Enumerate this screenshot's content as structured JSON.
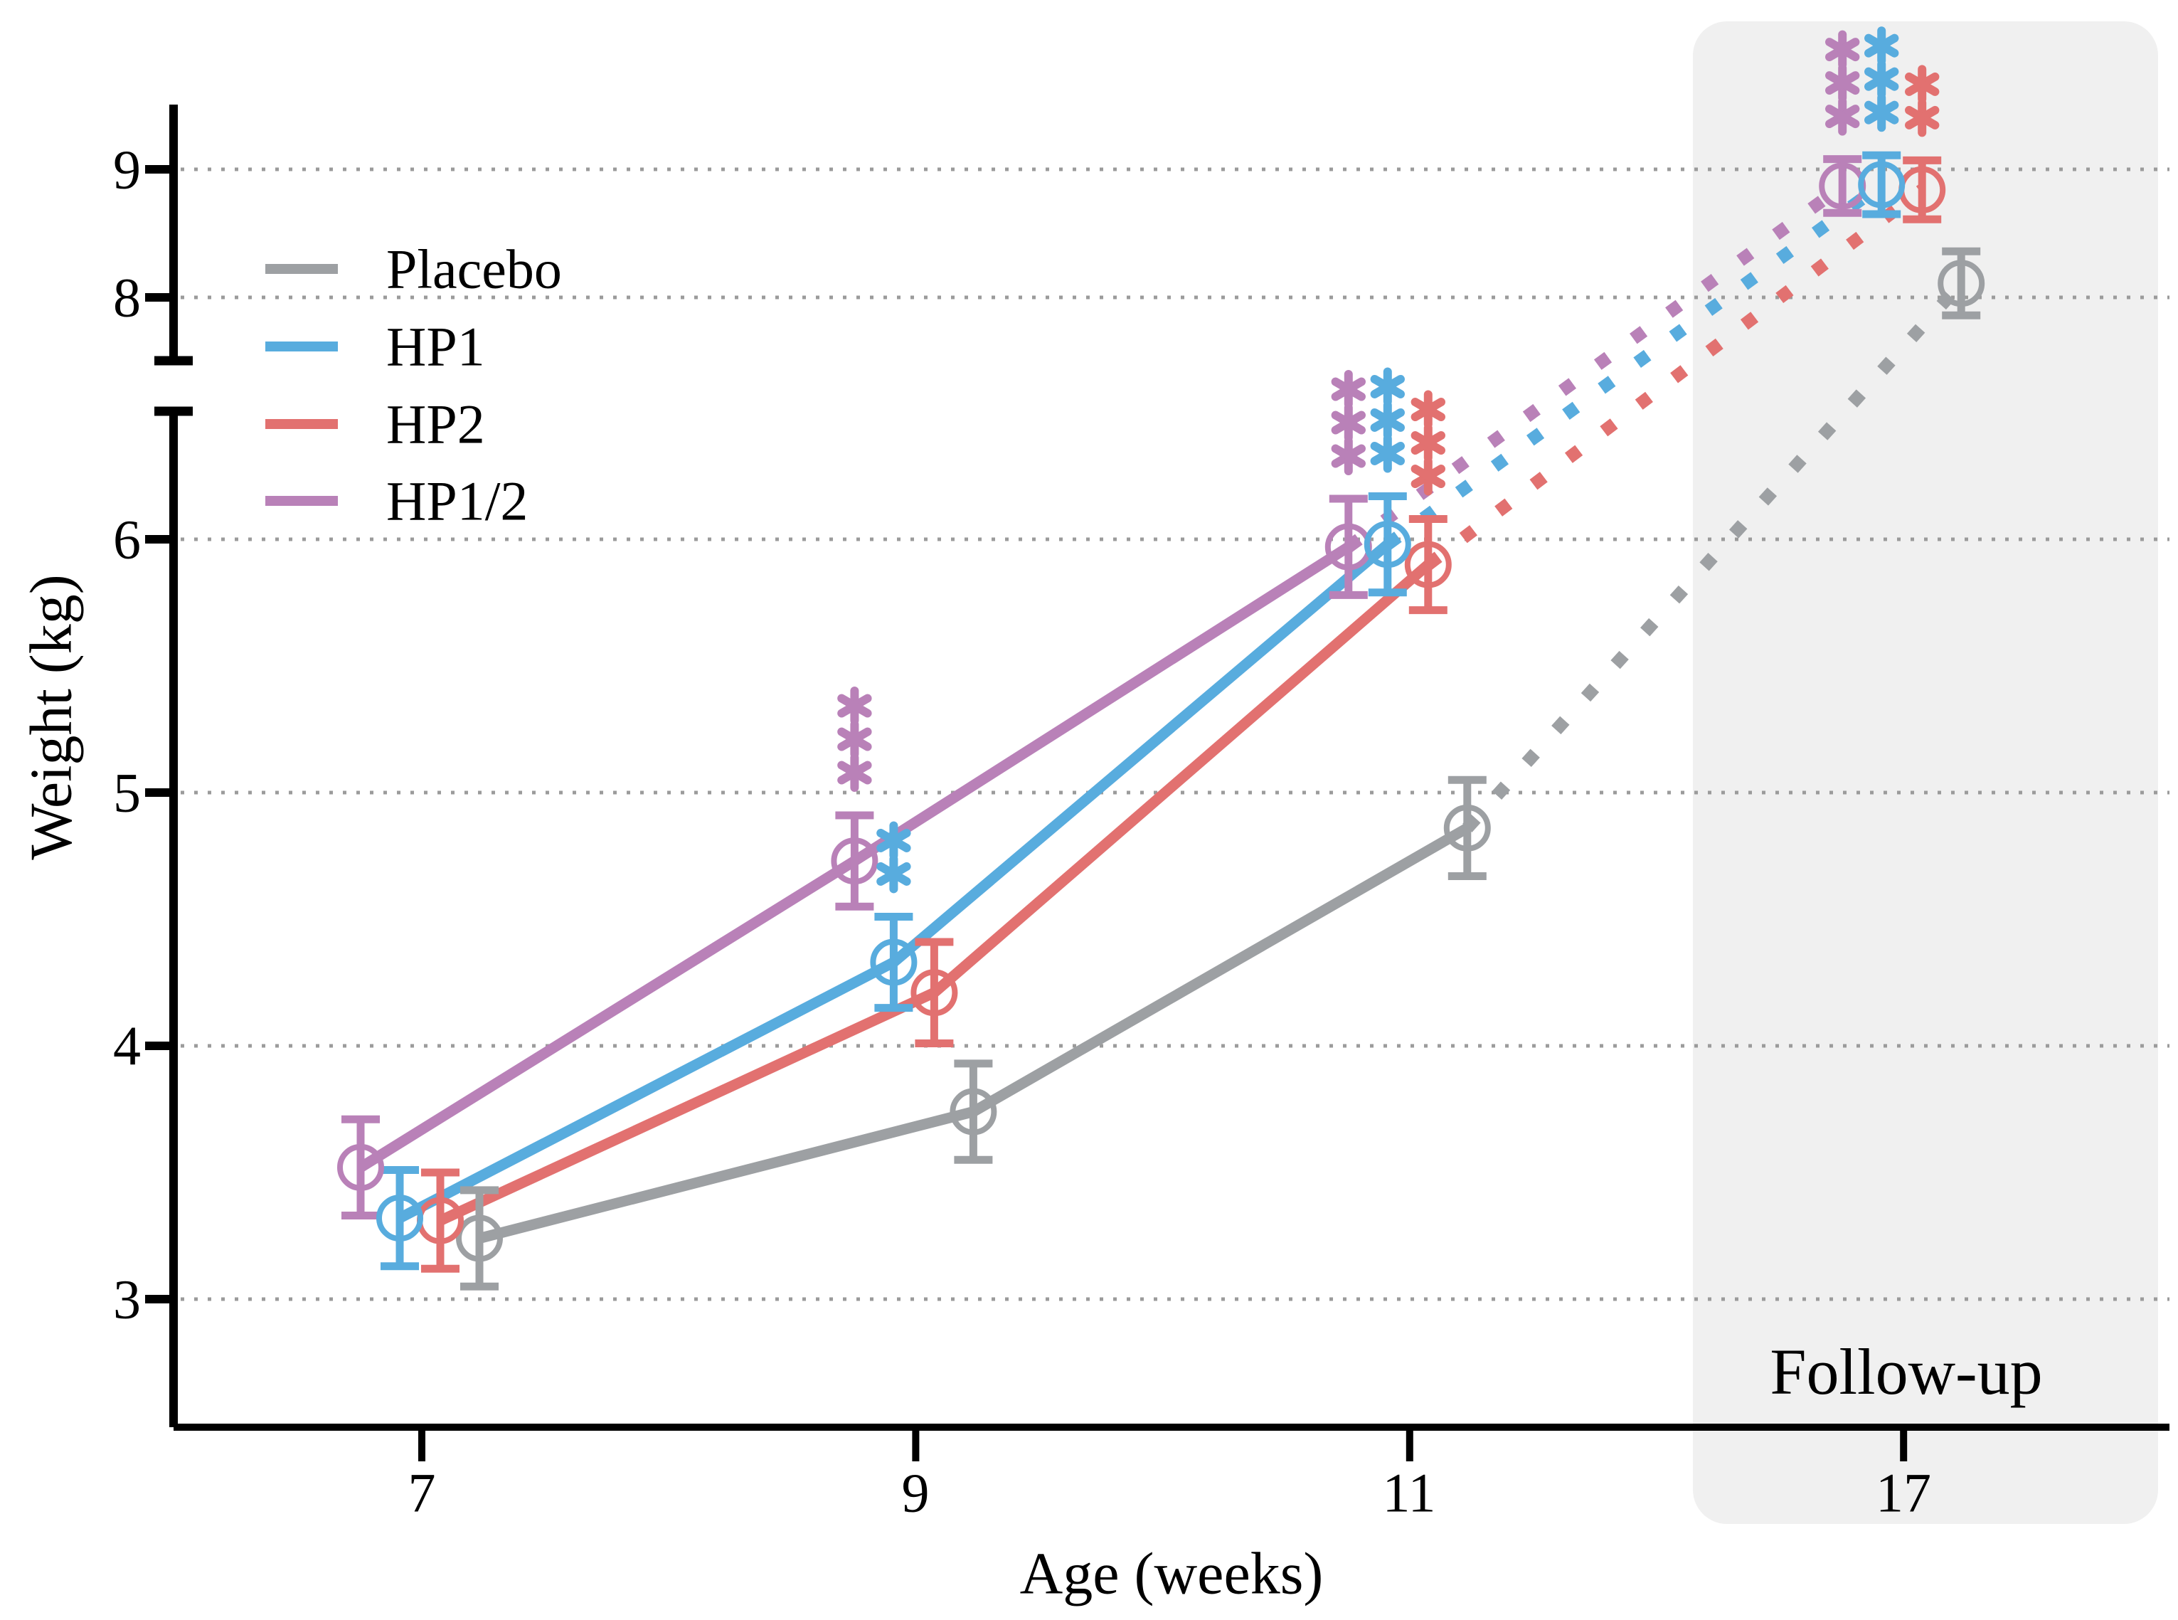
{
  "figure": {
    "y_axis_title": "Weight (kg)",
    "x_axis_title": "Age (weeks)"
  },
  "legend": {
    "items": [
      {
        "label": "Placebo"
      },
      {
        "label": "HP1"
      },
      {
        "label": "HP2"
      },
      {
        "label": "HP1/2"
      }
    ]
  },
  "followup": {
    "label": "Follow-up",
    "band_color": "#F0F0F0"
  },
  "chart_data": {
    "type": "line",
    "title": "",
    "xlabel": "Age (weeks)",
    "ylabel": "Weight (kg)",
    "x": [
      7,
      9,
      11,
      17
    ],
    "x_tick_labels": [
      "7",
      "9",
      "11",
      "17"
    ],
    "y_tick_values": [
      9,
      8,
      6,
      5,
      4,
      3
    ],
    "y_tick_labels": [
      "9",
      "8",
      "6",
      "5",
      "4",
      "3"
    ],
    "y_axis_break": {
      "between": [
        6.5,
        7.5
      ],
      "note": "broken y-axis; upper segment compressed"
    },
    "grid": "horizontal-dotted",
    "legend_position": "upper-left-inside",
    "followup_span_x": [
      11.6,
      17.6
    ],
    "solid_segment_x": [
      7,
      11
    ],
    "dotted_segment_x": [
      11,
      17
    ],
    "marker": "open-circle",
    "gridline_color": "#9B9B9B",
    "series": [
      {
        "name": "Placebo",
        "color": "#9DA0A3",
        "values": [
          3.24,
          3.74,
          4.86,
          8.11
        ],
        "errors": [
          0.19,
          0.19,
          0.19,
          0.25
        ]
      },
      {
        "name": "HP1",
        "color": "#58ACDE",
        "values": [
          3.32,
          4.33,
          5.98,
          8.88
        ],
        "errors": [
          0.19,
          0.18,
          0.19,
          0.23
        ]
      },
      {
        "name": "HP2",
        "color": "#E27170",
        "values": [
          3.31,
          4.21,
          5.9,
          8.84
        ],
        "errors": [
          0.19,
          0.2,
          0.18,
          0.23
        ]
      },
      {
        "name": "HP1/2",
        "color": "#B981B8",
        "values": [
          3.52,
          4.73,
          5.97,
          8.87
        ],
        "errors": [
          0.19,
          0.18,
          0.19,
          0.21
        ]
      }
    ],
    "significance": [
      {
        "series": "HP1/2",
        "age": 9,
        "stars": "***"
      },
      {
        "series": "HP1",
        "age": 9,
        "stars": "**"
      },
      {
        "series": "HP1/2",
        "age": 11,
        "stars": "***"
      },
      {
        "series": "HP1",
        "age": 11,
        "stars": "***"
      },
      {
        "series": "HP2",
        "age": 11,
        "stars": "***"
      },
      {
        "series": "HP1/2",
        "age": 17,
        "stars": "***"
      },
      {
        "series": "HP1",
        "age": 17,
        "stars": "***"
      },
      {
        "series": "HP2",
        "age": 17,
        "stars": "**"
      }
    ]
  }
}
